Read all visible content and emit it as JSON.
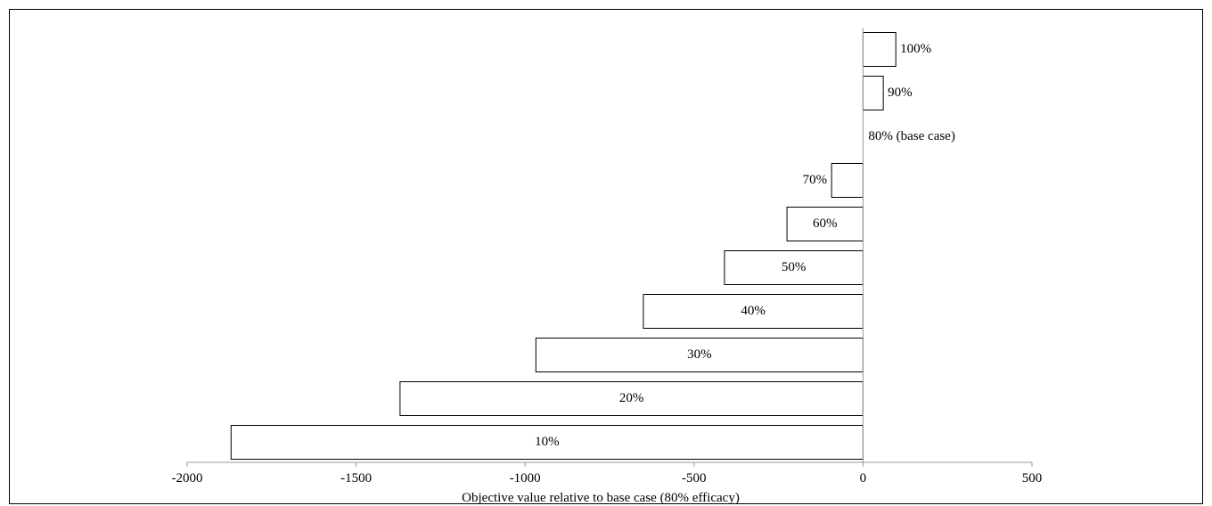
{
  "chart_data": {
    "type": "bar",
    "orientation": "horizontal",
    "categories": [
      "100%",
      "90%",
      "80% (base case)",
      "70%",
      "60%",
      "50%",
      "40%",
      "30%",
      "20%",
      "10%"
    ],
    "values": [
      97,
      60,
      0,
      -93,
      -225,
      -410,
      -650,
      -968,
      -1370,
      -1870
    ],
    "xlabel": "Objective value relative to base case (80% efficacy)",
    "ylabel": "",
    "title": "",
    "xlim": [
      -2000,
      500
    ],
    "xticks": [
      -2000,
      -1500,
      -1000,
      -500,
      0,
      500
    ],
    "grid": false,
    "legend": "none",
    "bar_fill": "#ffffff",
    "bar_stroke": "#000000"
  }
}
